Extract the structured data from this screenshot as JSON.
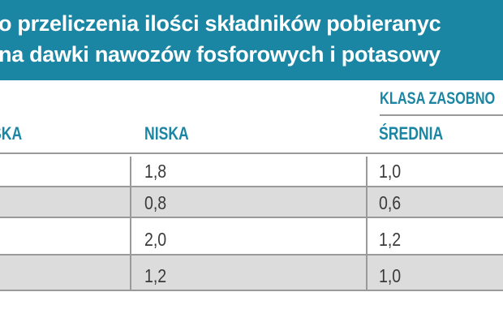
{
  "header": {
    "line1": "o przeliczenia ilości składników pobieranyc",
    "line2": "na dawki nawozów fosforowych i potasowy"
  },
  "table": {
    "group_header": "KLASA ZASOBNO",
    "columns": [
      "SKA",
      "NISKA",
      "ŚREDNIA"
    ],
    "rows": [
      [
        "1,8",
        "1,0"
      ],
      [
        "0,8",
        "0,6"
      ],
      [
        "2,0",
        "1,2"
      ],
      [
        "1,2",
        "1,0"
      ]
    ]
  },
  "colors": {
    "accent": "#1a86a3",
    "row_shade": "#dcdcdc",
    "rule": "#9a9a9a",
    "text": "#3a3a3a"
  }
}
